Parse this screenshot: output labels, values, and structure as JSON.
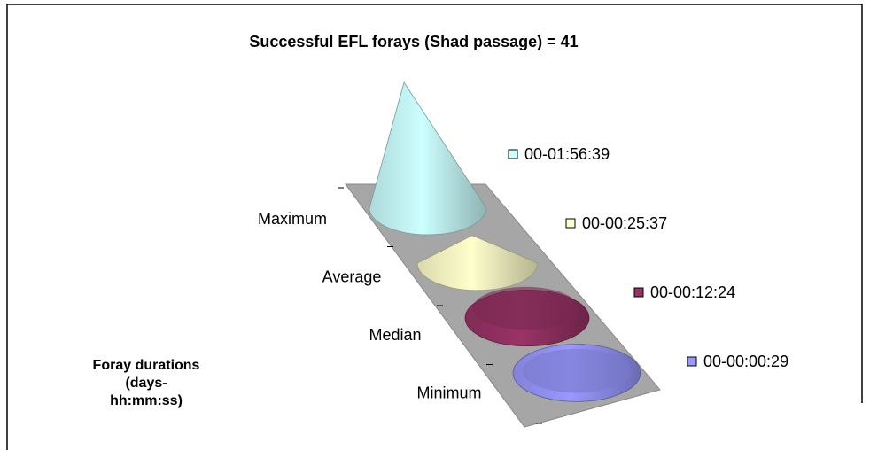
{
  "chart_data": {
    "type": "cone3d",
    "title": "Successful EFL forays (Shad passage) = 41",
    "ylabel_lines": [
      "Foray durations",
      "(days-",
      "hh:mm:ss)"
    ],
    "categories": [
      "Maximum",
      "Average",
      "Median",
      "Minimum"
    ],
    "values": [
      6999,
      1537,
      744,
      29
    ],
    "value_labels": [
      "00-01:56:39",
      "00-00:25:37",
      "00-00:12:24",
      "00-00:00:29"
    ],
    "colors": [
      "#ccffff",
      "#ffffcc",
      "#993366",
      "#9999ff"
    ]
  }
}
